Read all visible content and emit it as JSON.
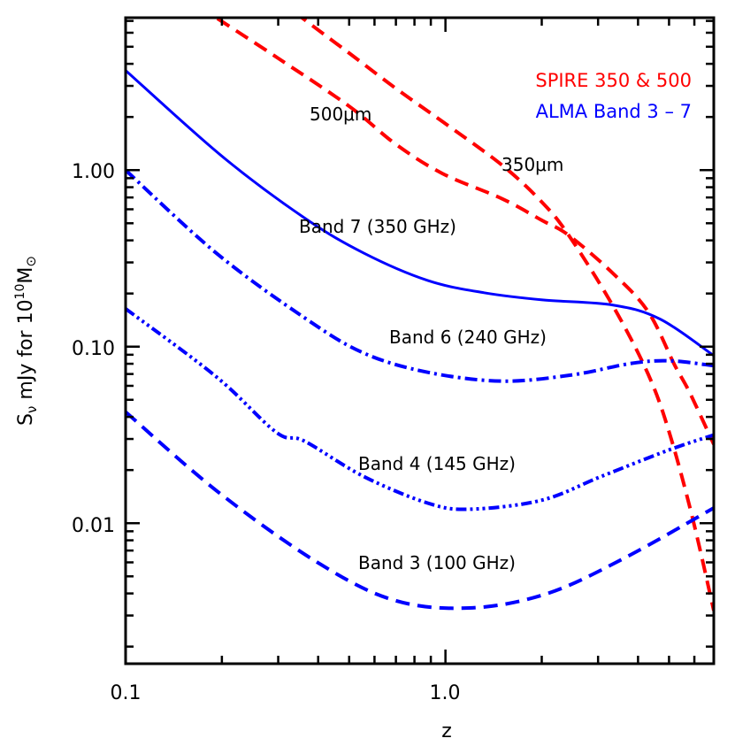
{
  "chart_data": {
    "type": "line",
    "title": "",
    "xlabel": "z",
    "ylabel": {
      "main": "S",
      "sub": "ν",
      "rest": " mJy for 10",
      "sup": "10",
      "unit": "M",
      "unit_sub": "⊙"
    },
    "x_scale": "log",
    "y_scale": "log",
    "xlim": [
      0.1,
      6.9
    ],
    "ylim": [
      0.0016,
      7.3
    ],
    "x_ticks": [
      {
        "value": 0.1,
        "label": "0.1"
      },
      {
        "value": 1.0,
        "label": "1.0"
      }
    ],
    "y_ticks": [
      {
        "value": 1.0,
        "label": "1.00"
      },
      {
        "value": 0.1,
        "label": "0.10"
      },
      {
        "value": 0.01,
        "label": "0.01"
      }
    ],
    "grid": false,
    "legend": {
      "placement": "top-right",
      "entries": [
        {
          "text": "SPIRE 350 & 500",
          "color": "#ff0000"
        },
        {
          "text": "ALMA Band 3 – 7",
          "color": "#0000ff"
        }
      ]
    },
    "series": [
      {
        "name": "350μm",
        "label": "350μm",
        "color": "#ff0000",
        "style": "dashed",
        "x": [
          0.3,
          0.356,
          0.5,
          0.7,
          0.98,
          1.5,
          2.0,
          2.43,
          3.34,
          4.3,
          5.0,
          5.9,
          6.9
        ],
        "y": [
          9.5,
          7.3,
          4.6,
          2.9,
          1.88,
          1.07,
          0.66,
          0.427,
          0.17,
          0.07,
          0.033,
          0.011,
          0.0032
        ]
      },
      {
        "name": "500μm",
        "label": "500μm",
        "color": "#ff0000",
        "style": "dashed",
        "x": [
          0.17,
          0.192,
          0.3,
          0.5,
          0.7,
          0.98,
          1.5,
          2.0,
          2.43,
          3.34,
          4.3,
          5.2,
          5.8,
          6.9
        ],
        "y": [
          8.5,
          7.3,
          4.3,
          2.3,
          1.4,
          0.955,
          0.69,
          0.52,
          0.427,
          0.26,
          0.158,
          0.079,
          0.055,
          0.028
        ]
      },
      {
        "name": "Band 7 (350 GHz)",
        "label": "Band 7 (350 GHz)",
        "color": "#0000ff",
        "style": "solid",
        "x": [
          0.1,
          0.2,
          0.362,
          0.555,
          0.88,
          1.32,
          2.01,
          3.34,
          4.7,
          6.9
        ],
        "y": [
          3.67,
          1.2,
          0.537,
          0.339,
          0.237,
          0.202,
          0.184,
          0.172,
          0.143,
          0.089
        ]
      },
      {
        "name": "Band 6 (240 GHz)",
        "label": "Band 6 (240 GHz)",
        "color": "#0000ff",
        "style": "dash-dot",
        "x": [
          0.1,
          0.192,
          0.362,
          0.555,
          0.88,
          1.5,
          2.49,
          3.78,
          5.0,
          6.9
        ],
        "y": [
          1.0,
          0.339,
          0.146,
          0.092,
          0.0716,
          0.0638,
          0.0692,
          0.0802,
          0.0832,
          0.078
        ]
      },
      {
        "name": "Band 4 (145 GHz)",
        "label": "Band 4 (145 GHz)",
        "color": "#0000ff",
        "style": "dash-dot-dot-dot",
        "x": [
          0.1,
          0.192,
          0.296,
          0.362,
          0.555,
          0.88,
          1.19,
          2.0,
          3.07,
          5.0,
          6.9
        ],
        "y": [
          0.164,
          0.0676,
          0.0327,
          0.0292,
          0.0184,
          0.013,
          0.012,
          0.0135,
          0.0184,
          0.026,
          0.0316
        ]
      },
      {
        "name": "Band 3 (100 GHz)",
        "label": "Band 3 (100 GHz)",
        "color": "#0000ff",
        "style": "dashed",
        "x": [
          0.1,
          0.194,
          0.396,
          0.688,
          1.19,
          2.07,
          3.6,
          6.9
        ],
        "y": [
          0.0427,
          0.0151,
          0.00603,
          0.00367,
          0.00331,
          0.00398,
          0.0063,
          0.0122
        ]
      }
    ]
  }
}
